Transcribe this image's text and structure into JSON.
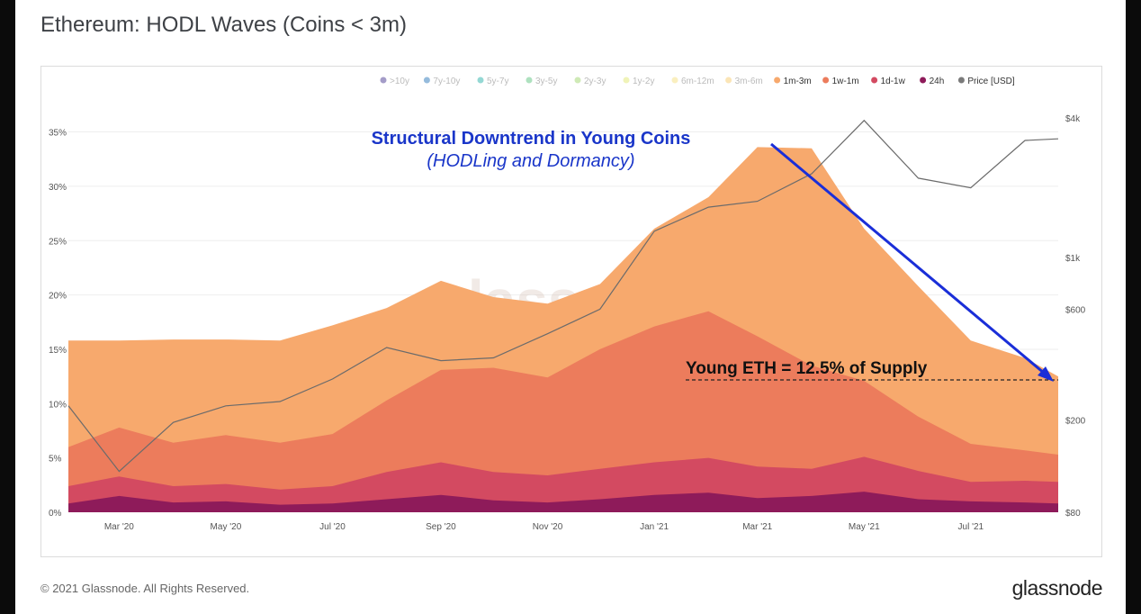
{
  "title": "Ethereum: HODL Waves (Coins < 3m)",
  "footer": {
    "copyright": "© 2021 Glassnode. All Rights Reserved.",
    "logo": "glassnode"
  },
  "watermark": "glassnode",
  "annotations": {
    "headline": "Structural Downtrend in Young Coins",
    "subline": "(HODLing and Dormancy)",
    "young_eth": "Young ETH = 12.5% of Supply"
  },
  "colors": {
    "band_1m_3m": "#f9b07b",
    "band_1w_1m": "#ee7f66",
    "band_1d_1w": "#d7586b",
    "band_24h": "#a02a64",
    "price_line": "#6b6b6b",
    "arrow": "#1a2ed8",
    "headline": "#1a36c9"
  },
  "chart_data": {
    "type": "area",
    "stacked": true,
    "title": "Ethereum: HODL Waves (Coins < 3m)",
    "legend": [
      {
        "label": ">10y",
        "color": "#5a4a9a",
        "active": false
      },
      {
        "label": "7y-10y",
        "color": "#3e84c0",
        "active": false
      },
      {
        "label": "5y-7y",
        "color": "#3db8b0",
        "active": false
      },
      {
        "label": "3y-5y",
        "color": "#6cc98a",
        "active": false
      },
      {
        "label": "2y-3y",
        "color": "#a7d97a",
        "active": false
      },
      {
        "label": "1y-2y",
        "color": "#e3e97e",
        "active": false
      },
      {
        "label": "6m-12m",
        "color": "#f5e28a",
        "active": false
      },
      {
        "label": "3m-6m",
        "color": "#f8cf7a",
        "active": false
      },
      {
        "label": "1m-3m",
        "color": "#f7a96d",
        "active": true
      },
      {
        "label": "1w-1m",
        "color": "#ec7c5c",
        "active": true
      },
      {
        "label": "1d-1w",
        "color": "#d34a61",
        "active": true
      },
      {
        "label": "24h",
        "color": "#8e1b5a",
        "active": true
      },
      {
        "label": "Price [USD]",
        "color": "#7a7a7a",
        "active": true
      }
    ],
    "legend_position": "top-right",
    "x_ticks": [
      "Mar '20",
      "May '20",
      "Jul '20",
      "Sep '20",
      "Nov '20",
      "Jan '21",
      "Mar '21",
      "May '21",
      "Jul '21"
    ],
    "y_left_ticks": [
      "0%",
      "5%",
      "10%",
      "15%",
      "20%",
      "25%",
      "30%",
      "35%"
    ],
    "y_left_range": [
      0,
      37
    ],
    "y_right_ticks": [
      "$80",
      "$200",
      "$600",
      "$1k",
      "$4k"
    ],
    "y_right_scale": "log",
    "grid": true,
    "x": [
      "2020-02-01",
      "2020-03-01",
      "2020-04-01",
      "2020-05-01",
      "2020-06-01",
      "2020-07-01",
      "2020-08-01",
      "2020-09-01",
      "2020-10-01",
      "2020-11-01",
      "2020-12-01",
      "2021-01-01",
      "2021-02-01",
      "2021-03-01",
      "2021-04-01",
      "2021-05-01",
      "2021-06-01",
      "2021-07-01",
      "2021-08-01",
      "2021-08-20"
    ],
    "series": [
      {
        "name": "24h",
        "values": [
          0.8,
          1.5,
          0.9,
          1.0,
          0.7,
          0.8,
          1.2,
          1.6,
          1.1,
          0.9,
          1.2,
          1.6,
          1.8,
          1.3,
          1.5,
          1.9,
          1.2,
          1.0,
          0.9,
          0.8
        ]
      },
      {
        "name": "1d-1w",
        "values": [
          1.6,
          1.8,
          1.5,
          1.6,
          1.4,
          1.6,
          2.5,
          3.0,
          2.6,
          2.5,
          2.8,
          3.0,
          3.2,
          2.9,
          2.5,
          3.2,
          2.6,
          1.8,
          2.0,
          2.0
        ]
      },
      {
        "name": "1w-1m",
        "values": [
          3.6,
          4.5,
          4.0,
          4.5,
          4.3,
          4.8,
          6.6,
          8.5,
          9.6,
          9.0,
          11.0,
          12.5,
          13.5,
          12.0,
          9.5,
          7.0,
          5.0,
          3.5,
          2.8,
          2.5
        ]
      },
      {
        "name": "1m-3m",
        "values": [
          9.8,
          8.0,
          9.5,
          8.8,
          9.4,
          10.0,
          8.5,
          8.2,
          6.5,
          6.8,
          6.0,
          9.0,
          10.5,
          17.4,
          20.0,
          14.0,
          12.0,
          9.5,
          8.5,
          7.2
        ]
      }
    ],
    "price_usd": [
      230,
      120,
      195,
      230,
      240,
      300,
      410,
      360,
      370,
      470,
      600,
      1300,
      1650,
      1750,
      2300,
      3900,
      2200,
      2000,
      3200,
      3250
    ],
    "current_young_supply_pct": 12.5
  }
}
